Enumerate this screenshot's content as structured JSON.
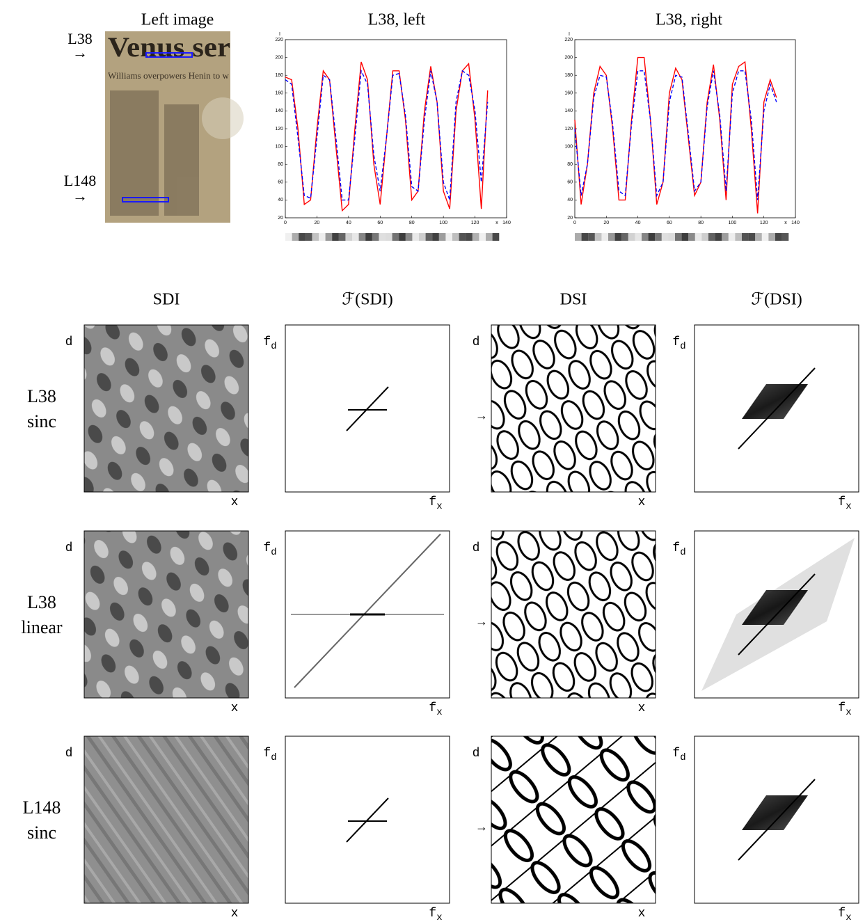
{
  "figure": {
    "left_image": {
      "title": "Left image",
      "image_text": [
        "Venus ser",
        "Williams overpowers Henin to w"
      ],
      "markers": [
        {
          "label": "L38",
          "arrow": "→"
        },
        {
          "label": "L148",
          "arrow": "→"
        }
      ]
    },
    "grid": {
      "columns": [
        {
          "title": "SDI",
          "ylabel": "d",
          "xlabel": "x"
        },
        {
          "title": "ℱ(SDI)",
          "ylabel": "f",
          "ylabel_sub": "d",
          "xlabel": "f",
          "xlabel_sub": "x"
        },
        {
          "title": "DSI",
          "ylabel": "d",
          "xlabel": "x"
        },
        {
          "title": "ℱ(DSI)",
          "ylabel": "f",
          "ylabel_sub": "d",
          "xlabel": "f",
          "xlabel_sub": "x"
        }
      ],
      "rows": [
        {
          "lines": [
            "L38",
            "sinc"
          ]
        },
        {
          "lines": [
            "L38",
            "linear"
          ]
        },
        {
          "lines": [
            "L148",
            "sinc"
          ]
        }
      ],
      "arrow": "→"
    }
  },
  "chart_data": [
    {
      "type": "line",
      "title": "L38, left",
      "xlabel": "x",
      "ylabel": "I",
      "x": [
        0,
        4,
        8,
        12,
        16,
        20,
        24,
        28,
        32,
        36,
        40,
        44,
        48,
        52,
        56,
        60,
        64,
        68,
        72,
        76,
        80,
        84,
        88,
        92,
        96,
        100,
        104,
        108,
        112,
        116,
        120,
        124,
        128
      ],
      "series": [
        {
          "color": "#ff0000",
          "line_style": "solid",
          "values": [
            178,
            175,
            120,
            35,
            40,
            120,
            185,
            175,
            100,
            28,
            35,
            120,
            195,
            175,
            80,
            35,
            110,
            185,
            185,
            130,
            40,
            50,
            140,
            190,
            150,
            50,
            30,
            140,
            185,
            193,
            130,
            30,
            163
          ]
        },
        {
          "color": "#0000ff",
          "line_style": "dashed",
          "values": [
            175,
            170,
            110,
            45,
            42,
            110,
            180,
            175,
            110,
            40,
            40,
            110,
            185,
            170,
            90,
            50,
            110,
            180,
            182,
            135,
            55,
            50,
            130,
            185,
            150,
            60,
            40,
            150,
            185,
            180,
            140,
            60,
            150
          ]
        }
      ],
      "xlim": [
        0,
        140
      ],
      "xticks": [
        0,
        20,
        40,
        60,
        80,
        100,
        120,
        140
      ],
      "ylim": [
        20,
        220
      ],
      "yticks": [
        20,
        40,
        60,
        80,
        100,
        120,
        140,
        160,
        180,
        200,
        220
      ]
    },
    {
      "type": "line",
      "title": "L38, right",
      "xlabel": "x",
      "ylabel": "I",
      "x": [
        0,
        4,
        8,
        12,
        16,
        20,
        24,
        28,
        32,
        36,
        40,
        44,
        48,
        52,
        56,
        60,
        64,
        68,
        72,
        76,
        80,
        84,
        88,
        92,
        96,
        100,
        104,
        108,
        112,
        116,
        120,
        124,
        128
      ],
      "series": [
        {
          "color": "#ff0000",
          "line_style": "solid",
          "values": [
            130,
            35,
            80,
            160,
            190,
            180,
            120,
            40,
            40,
            130,
            200,
            200,
            130,
            35,
            60,
            160,
            188,
            175,
            110,
            45,
            60,
            150,
            192,
            130,
            40,
            170,
            190,
            195,
            120,
            25,
            150,
            175,
            155
          ]
        },
        {
          "color": "#0000ff",
          "line_style": "dashed",
          "values": [
            120,
            45,
            80,
            155,
            180,
            178,
            125,
            50,
            45,
            125,
            185,
            185,
            130,
            45,
            60,
            150,
            180,
            178,
            115,
            50,
            60,
            145,
            185,
            135,
            50,
            160,
            185,
            185,
            130,
            40,
            140,
            170,
            150
          ]
        }
      ],
      "xlim": [
        0,
        140
      ],
      "xticks": [
        0,
        20,
        40,
        60,
        80,
        100,
        120,
        140
      ],
      "ylim": [
        20,
        220
      ],
      "yticks": [
        20,
        40,
        60,
        80,
        100,
        120,
        140,
        160,
        180,
        200,
        220
      ]
    }
  ]
}
